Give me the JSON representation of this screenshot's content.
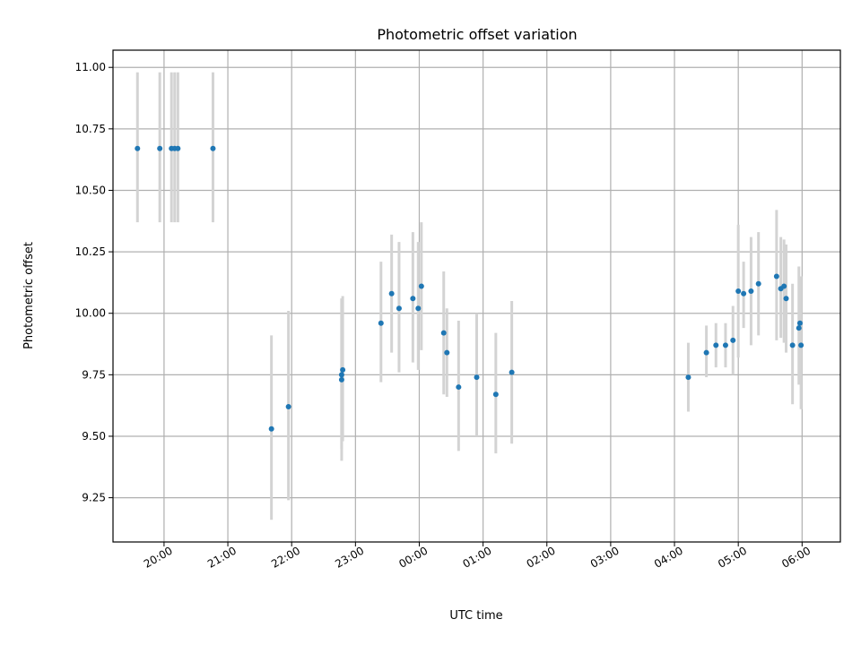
{
  "chart_data": {
    "type": "scatter",
    "title": "Photometric offset variation",
    "xlabel": "UTC time",
    "ylabel": "Photometric offset",
    "x_axis_type": "time",
    "x_range": [
      "19:12",
      "06:36"
    ],
    "x_ticks": [
      "20:00",
      "21:00",
      "22:00",
      "23:00",
      "00:00",
      "01:00",
      "02:00",
      "03:00",
      "04:00",
      "05:00",
      "06:00"
    ],
    "ylim": [
      9.07,
      11.07
    ],
    "y_ticks": [
      "9.25",
      "9.50",
      "9.75",
      "10.00",
      "10.25",
      "10.50",
      "10.75",
      "11.00"
    ],
    "grid": true,
    "colors": {
      "point": "#1f77b4",
      "errorbar": "#d3d3d3",
      "grid": "#b0b0b0"
    },
    "points": [
      {
        "t": "19:35",
        "y": 10.67,
        "lo": 10.37,
        "hi": 10.98
      },
      {
        "t": "19:56",
        "y": 10.67,
        "lo": 10.37,
        "hi": 10.98
      },
      {
        "t": "20:07",
        "y": 10.67,
        "lo": 10.37,
        "hi": 10.98
      },
      {
        "t": "20:10",
        "y": 10.67,
        "lo": 10.37,
        "hi": 10.98
      },
      {
        "t": "20:13",
        "y": 10.67,
        "lo": 10.37,
        "hi": 10.98
      },
      {
        "t": "20:46",
        "y": 10.67,
        "lo": 10.37,
        "hi": 10.98
      },
      {
        "t": "21:41",
        "y": 9.53,
        "lo": 9.16,
        "hi": 9.91
      },
      {
        "t": "21:57",
        "y": 9.62,
        "lo": 9.24,
        "hi": 10.01
      },
      {
        "t": "22:47",
        "y": 9.73,
        "lo": 9.4,
        "hi": 10.06
      },
      {
        "t": "22:47",
        "y": 9.75,
        "lo": 9.45,
        "hi": 10.06
      },
      {
        "t": "22:48",
        "y": 9.77,
        "lo": 9.48,
        "hi": 10.07
      },
      {
        "t": "23:24",
        "y": 9.96,
        "lo": 9.72,
        "hi": 10.21
      },
      {
        "t": "23:34",
        "y": 10.08,
        "lo": 9.84,
        "hi": 10.32
      },
      {
        "t": "23:41",
        "y": 10.02,
        "lo": 9.76,
        "hi": 10.29
      },
      {
        "t": "23:54",
        "y": 10.06,
        "lo": 9.8,
        "hi": 10.33
      },
      {
        "t": "23:59",
        "y": 10.02,
        "lo": 9.77,
        "hi": 10.29
      },
      {
        "t": "00:02",
        "y": 10.11,
        "lo": 9.85,
        "hi": 10.37
      },
      {
        "t": "00:23",
        "y": 9.92,
        "lo": 9.67,
        "hi": 10.17
      },
      {
        "t": "00:26",
        "y": 9.84,
        "lo": 9.66,
        "hi": 10.02
      },
      {
        "t": "00:37",
        "y": 9.7,
        "lo": 9.44,
        "hi": 9.97
      },
      {
        "t": "00:54",
        "y": 9.74,
        "lo": 9.5,
        "hi": 10.0
      },
      {
        "t": "01:12",
        "y": 9.67,
        "lo": 9.43,
        "hi": 9.92
      },
      {
        "t": "01:27",
        "y": 9.76,
        "lo": 9.47,
        "hi": 10.05
      },
      {
        "t": "04:13",
        "y": 9.74,
        "lo": 9.6,
        "hi": 9.88
      },
      {
        "t": "04:30",
        "y": 9.84,
        "lo": 9.74,
        "hi": 9.95
      },
      {
        "t": "04:39",
        "y": 9.87,
        "lo": 9.78,
        "hi": 9.96
      },
      {
        "t": "04:48",
        "y": 9.87,
        "lo": 9.78,
        "hi": 9.96
      },
      {
        "t": "04:55",
        "y": 9.89,
        "lo": 9.75,
        "hi": 10.03
      },
      {
        "t": "05:00",
        "y": 10.09,
        "lo": 9.82,
        "hi": 10.36
      },
      {
        "t": "05:05",
        "y": 10.08,
        "lo": 9.94,
        "hi": 10.21
      },
      {
        "t": "05:12",
        "y": 10.09,
        "lo": 9.87,
        "hi": 10.31
      },
      {
        "t": "05:19",
        "y": 10.12,
        "lo": 9.91,
        "hi": 10.33
      },
      {
        "t": "05:36",
        "y": 10.15,
        "lo": 9.89,
        "hi": 10.42
      },
      {
        "t": "05:40",
        "y": 10.1,
        "lo": 9.9,
        "hi": 10.31
      },
      {
        "t": "05:43",
        "y": 10.11,
        "lo": 9.88,
        "hi": 10.3
      },
      {
        "t": "05:45",
        "y": 10.06,
        "lo": 9.84,
        "hi": 10.28
      },
      {
        "t": "05:51",
        "y": 9.87,
        "lo": 9.63,
        "hi": 10.12
      },
      {
        "t": "05:57",
        "y": 9.94,
        "lo": 9.71,
        "hi": 10.19
      },
      {
        "t": "05:58",
        "y": 9.96,
        "lo": 9.8,
        "hi": 10.12
      },
      {
        "t": "05:59",
        "y": 9.87,
        "lo": 9.61,
        "hi": 10.15
      }
    ]
  }
}
